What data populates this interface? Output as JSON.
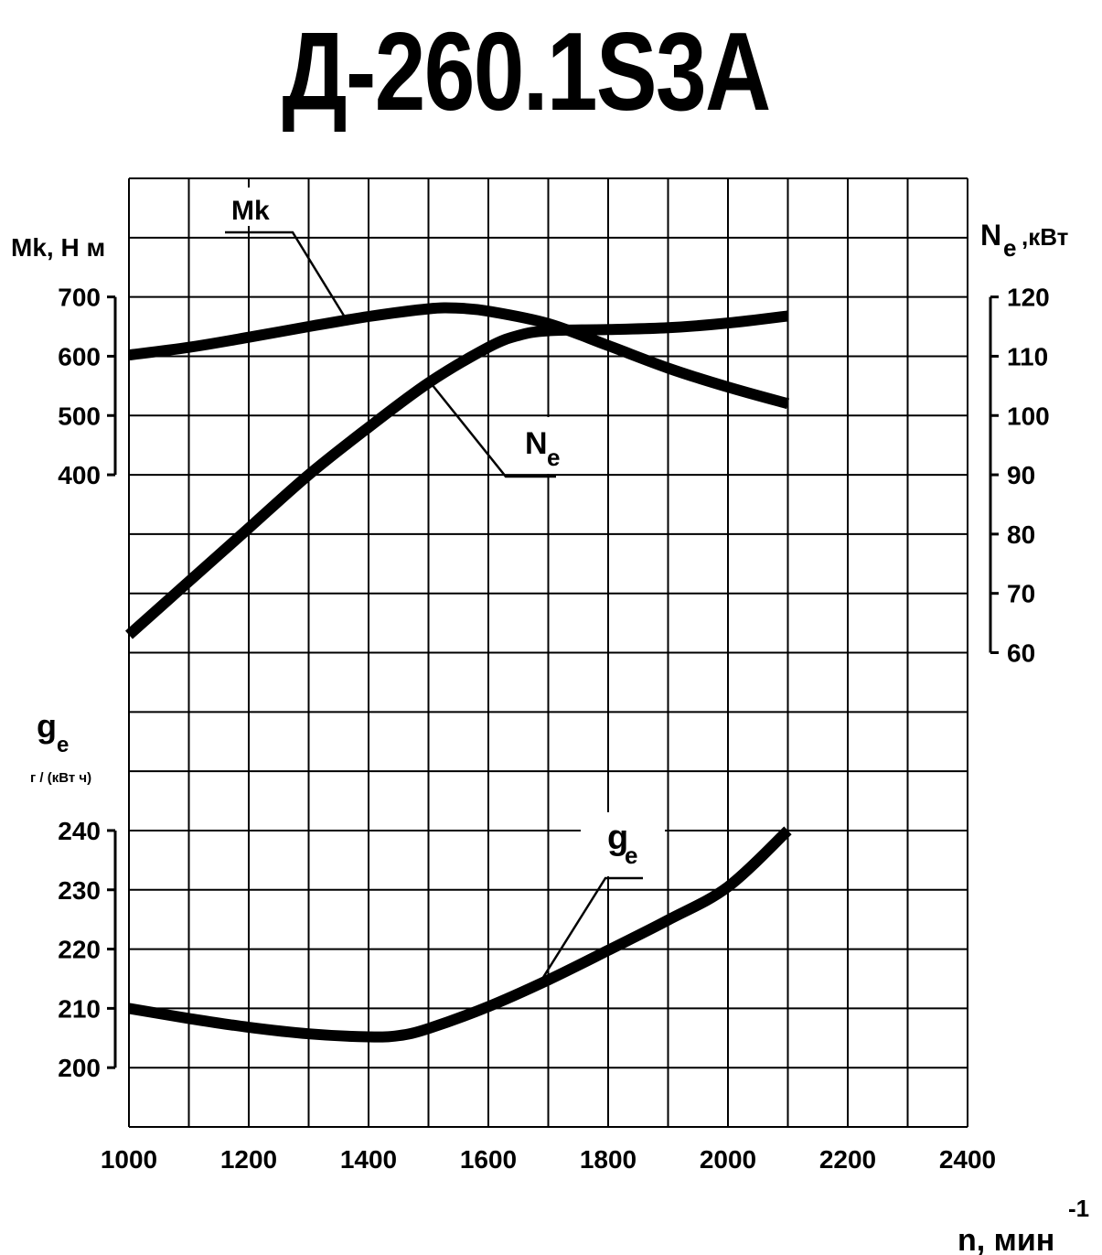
{
  "title": "Д-260.1S3A",
  "axes": {
    "x_label": "n, мин",
    "x_label_exp": "-1",
    "mk_label": "Mk, H м",
    "ne_label_main": "N",
    "ne_label_sub": "e",
    "ne_label_unit": ",кВт",
    "ge_label_main": "g",
    "ge_label_sub": "e",
    "ge_unit": "г / (кВт ч)"
  },
  "curve_labels": {
    "mk": "Mk",
    "ne_main": "N",
    "ne_sub": "e",
    "ge_main": "g",
    "ge_sub": "e"
  },
  "chart_data": {
    "type": "line",
    "title": "Д-260.1S3A",
    "xlabel": "n, мин-1",
    "xlim": [
      1000,
      2400
    ],
    "x_ticks": [
      "1000",
      "1200",
      "1400",
      "1600",
      "1800",
      "2000",
      "2200",
      "2400"
    ],
    "grid": true,
    "y_axes": {
      "mk": {
        "label": "Mk, H м",
        "ticks": [
          "700",
          "600",
          "500",
          "400"
        ],
        "range": [
          400,
          700
        ],
        "side": "left"
      },
      "ne": {
        "label": "Ne ,кВт",
        "ticks": [
          "120",
          "110",
          "100",
          "90",
          "80",
          "70",
          "60"
        ],
        "range": [
          60,
          120
        ],
        "side": "right"
      },
      "ge": {
        "label": "ge г / (кВт ч)",
        "ticks": [
          "240",
          "230",
          "220",
          "210",
          "200"
        ],
        "range": [
          200,
          240
        ],
        "side": "left"
      }
    },
    "series": [
      {
        "name": "Mk",
        "axis": "mk",
        "x": [
          1000,
          1100,
          1200,
          1300,
          1400,
          1500,
          1550,
          1600,
          1700,
          1800,
          1900,
          2000,
          2100
        ],
        "values": [
          602,
          615,
          632,
          650,
          667,
          680,
          681,
          676,
          655,
          618,
          580,
          548,
          520
        ]
      },
      {
        "name": "Ne",
        "axis": "ne",
        "x": [
          1000,
          1100,
          1200,
          1300,
          1400,
          1500,
          1600,
          1650,
          1700,
          1800,
          1900,
          2000,
          2100
        ],
        "values": [
          63,
          72,
          81,
          90,
          98,
          105.5,
          111.5,
          113.5,
          114.3,
          114.5,
          114.8,
          115.6,
          116.8
        ]
      },
      {
        "name": "ge",
        "axis": "ge",
        "x": [
          1000,
          1100,
          1200,
          1300,
          1400,
          1450,
          1500,
          1600,
          1700,
          1800,
          1900,
          2000,
          2100
        ],
        "values": [
          210,
          208.3,
          206.8,
          205.7,
          205.2,
          205.4,
          206.6,
          210.3,
          214.8,
          219.8,
          224.9,
          230.5,
          240
        ]
      }
    ]
  }
}
